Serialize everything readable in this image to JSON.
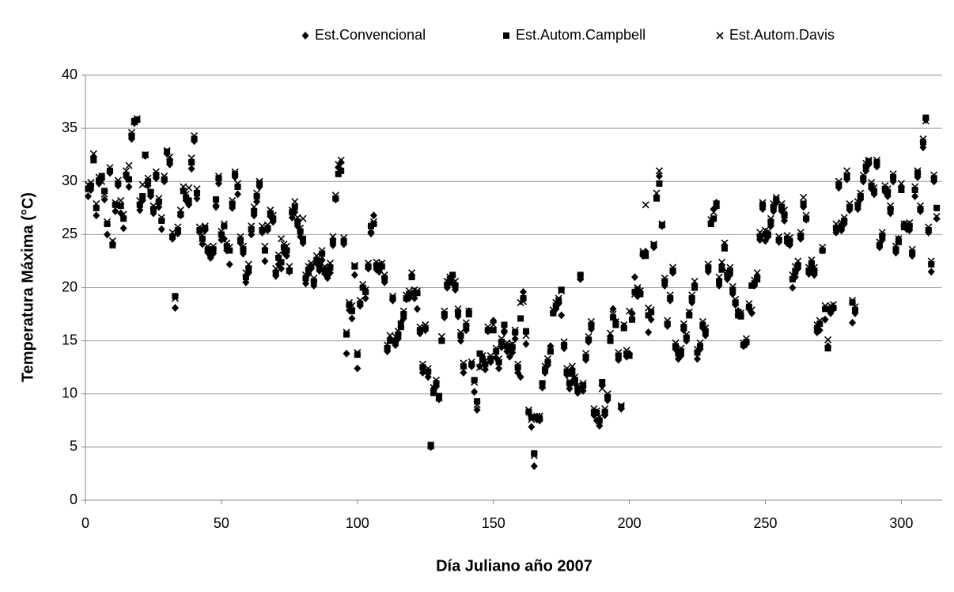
{
  "chart_data": {
    "type": "scatter",
    "xlabel": "Día Juliano año 2007",
    "ylabel": "Temperatura Máxima (°C)",
    "xlim": [
      0,
      315
    ],
    "ylim": [
      0,
      40
    ],
    "xticks": [
      0,
      50,
      100,
      150,
      200,
      250,
      300
    ],
    "yticks": [
      0,
      5,
      10,
      15,
      20,
      25,
      30,
      35,
      40
    ],
    "grid": true,
    "legend": "top",
    "x": [
      1,
      2,
      3,
      4,
      5,
      6,
      7,
      8,
      9,
      10,
      11,
      12,
      13,
      14,
      15,
      16,
      17,
      18,
      19,
      20,
      21,
      22,
      23,
      24,
      25,
      26,
      27,
      28,
      29,
      30,
      31,
      32,
      33,
      34,
      35,
      36,
      37,
      38,
      39,
      40,
      41,
      42,
      43,
      44,
      45,
      46,
      47,
      48,
      49,
      50,
      51,
      52,
      53,
      54,
      55,
      56,
      57,
      58,
      59,
      60,
      61,
      62,
      63,
      64,
      65,
      66,
      67,
      68,
      69,
      70,
      71,
      72,
      73,
      74,
      75,
      76,
      77,
      78,
      79,
      80,
      81,
      82,
      83,
      84,
      85,
      86,
      87,
      88,
      89,
      90,
      91,
      92,
      93,
      94,
      95,
      96,
      97,
      98,
      99,
      100,
      101,
      102,
      103,
      104,
      105,
      106,
      107,
      108,
      109,
      110,
      111,
      112,
      113,
      114,
      115,
      116,
      117,
      118,
      119,
      120,
      121,
      122,
      123,
      124,
      125,
      126,
      127,
      128,
      129,
      130,
      131,
      132,
      133,
      134,
      135,
      136,
      137,
      138,
      139,
      140,
      141,
      142,
      143,
      144,
      145,
      146,
      147,
      148,
      149,
      150,
      151,
      152,
      153,
      154,
      155,
      156,
      157,
      158,
      159,
      160,
      161,
      162,
      163,
      164,
      165,
      166,
      167,
      168,
      169,
      170,
      171,
      172,
      173,
      174,
      175,
      176,
      177,
      178,
      179,
      180,
      181,
      182,
      183,
      184,
      185,
      186,
      187,
      188,
      189,
      190,
      191,
      192,
      193,
      194,
      195,
      196,
      197,
      198,
      199,
      200,
      201,
      202,
      203,
      204,
      205,
      206,
      207,
      208,
      209,
      210,
      211,
      212,
      213,
      214,
      215,
      216,
      217,
      218,
      219,
      220,
      221,
      222,
      223,
      224,
      225,
      226,
      227,
      228,
      229,
      230,
      231,
      232,
      233,
      234,
      235,
      236,
      237,
      238,
      239,
      240,
      241,
      242,
      243,
      244,
      245,
      246,
      247,
      248,
      249,
      250,
      251,
      252,
      253,
      254,
      255,
      256,
      257,
      258,
      259,
      260,
      261,
      262,
      263,
      264,
      265,
      266,
      267,
      268,
      269,
      270,
      271,
      272,
      273,
      274,
      275,
      276,
      277,
      278,
      279,
      280,
      281,
      282,
      283,
      284,
      285,
      286,
      287,
      288,
      289,
      290,
      291,
      292,
      293,
      294,
      295,
      296,
      297,
      298,
      299,
      300,
      301,
      302,
      303,
      304,
      305,
      306,
      307,
      308,
      309,
      310,
      311,
      312,
      313
    ],
    "series": [
      {
        "name": "Est.Convencional",
        "color": "#000000",
        "marker": "diamond",
        "values": [
          28.6,
          29.2,
          32.3,
          26.8,
          29.8,
          30.2,
          28.3,
          25.0,
          30.8,
          24.2,
          27.2,
          29.6,
          27.0,
          25.6,
          30.4,
          29.5,
          34.0,
          35.5,
          35.8,
          27.3,
          28.2,
          32.4,
          29.6,
          28.6,
          27.0,
          30.3,
          27.6,
          25.5,
          30.0,
          32.6,
          31.6,
          24.6,
          18.1,
          25.1,
          26.8,
          29.2,
          28.2,
          27.8,
          31.2,
          33.8,
          28.4,
          25.2,
          24.1,
          25.4,
          23.3,
          22.8,
          23.2,
          27.6,
          29.8,
          24.5,
          24.6,
          23.5,
          22.2,
          27.5,
          30.4,
          28.8,
          24.2,
          23.2,
          20.5,
          21.4,
          25.0,
          26.8,
          28.1,
          29.5,
          25.2,
          22.5,
          25.4,
          26.7,
          26.2,
          21.1,
          22.2,
          21.8,
          23.3,
          23.0,
          21.5,
          26.6,
          27.1,
          25.8,
          24.8,
          24.2,
          20.4,
          21.3,
          21.8,
          20.2,
          22.3,
          21.6,
          22.6,
          21.3,
          20.9,
          21.4,
          24.0,
          28.3,
          31.3,
          31.8,
          24.1,
          13.8,
          17.9,
          17.1,
          21.2,
          12.4,
          18.3,
          20.0,
          19.0,
          21.8,
          25.1,
          26.8,
          21.7,
          21.5,
          22.0,
          20.5,
          14.0,
          15.2,
          18.8,
          14.6,
          15.2,
          16.7,
          17.1,
          18.9,
          19.0,
          21.2,
          19.0,
          18.0,
          15.7,
          12.0,
          16.0,
          11.6,
          5.0,
          10.5,
          10.7,
          9.5,
          15.1,
          17.2,
          20.0,
          20.5,
          20.4,
          19.8,
          17.3,
          15.0,
          12.0,
          16.0,
          17.8,
          12.6,
          10.2,
          8.5,
          12.6,
          13.5,
          12.3,
          15.9,
          13.0,
          16.9,
          13.4,
          12.4,
          14.4,
          15.8,
          14.0,
          13.5,
          13.9,
          15.2,
          12.0,
          11.6,
          19.6,
          14.7,
          8.2,
          6.9,
          3.2,
          7.6,
          7.5,
          10.6,
          12.0,
          12.7,
          14.5,
          17.7,
          18.0,
          18.5,
          17.4,
          14.3,
          11.8,
          10.5,
          12.3,
          11.0,
          10.1,
          20.8,
          10.3,
          13.2,
          14.9,
          16.1,
          8.0,
          7.5,
          7.0,
          10.8,
          8.0,
          9.4,
          15.4,
          18.0,
          16.8,
          13.2,
          8.6,
          16.4,
          13.5,
          13.8,
          17.6,
          21.0,
          19.2,
          19.6,
          23.0,
          23.4,
          15.8,
          17.0,
          23.8,
          28.6,
          30.5,
          25.8,
          20.2,
          16.4,
          18.8,
          21.4,
          14.2,
          13.3,
          13.6,
          16.0,
          15.0,
          17.6,
          18.6,
          20.2,
          13.3,
          14.2,
          16.2,
          15.5,
          21.5,
          26.2,
          27.4,
          28.0,
          20.2,
          22.1,
          24.0,
          20.8,
          21.2,
          19.4,
          18.4,
          17.8,
          17.6,
          14.5,
          14.7,
          18.0,
          17.6,
          20.2,
          21.0,
          24.5,
          27.4,
          24.4,
          24.8,
          25.8,
          27.2,
          28.0,
          24.3,
          27.2,
          26.3,
          24.2,
          24.0,
          20.0,
          21.0,
          21.8,
          24.6,
          27.6,
          26.4,
          21.3,
          21.9,
          21.2,
          15.8,
          16.0,
          23.5,
          17.0,
          14.5,
          17.6,
          18.0,
          25.2,
          29.4,
          25.4,
          26.0,
          30.2,
          27.3,
          16.7,
          17.6,
          27.4,
          28.3,
          30.0,
          31.0,
          31.6,
          29.3,
          28.8,
          31.4,
          23.8,
          24.5,
          29.0,
          28.6,
          27.0,
          30.0,
          23.3,
          24.6,
          29.5,
          26.0,
          25.5,
          25.4,
          23.0,
          28.6,
          30.4,
          27.2,
          33.2,
          35.8,
          25.2,
          21.5,
          30.0,
          26.5
        ]
      },
      {
        "name": "Est.Autom.Campbell",
        "color": "#000000",
        "marker": "square",
        "values": [
          29.3,
          29.6,
          32.0,
          27.5,
          30.1,
          30.5,
          29.1,
          26.0,
          31.0,
          24.0,
          27.8,
          29.8,
          27.7,
          26.5,
          30.6,
          30.2,
          34.3,
          35.7,
          35.8,
          27.8,
          28.6,
          32.5,
          30.0,
          29.0,
          27.4,
          30.6,
          28.1,
          26.3,
          30.2,
          32.8,
          31.9,
          24.8,
          19.2,
          25.4,
          26.9,
          29.1,
          28.5,
          28.2,
          31.8,
          34.0,
          28.9,
          25.4,
          24.6,
          25.6,
          23.6,
          23.2,
          23.6,
          28.3,
          30.3,
          25.0,
          25.8,
          23.9,
          23.5,
          27.9,
          30.7,
          29.5,
          24.5,
          23.6,
          21.0,
          21.8,
          25.5,
          27.2,
          28.6,
          29.8,
          25.4,
          23.5,
          25.6,
          27.0,
          26.5,
          21.4,
          22.8,
          22.4,
          23.8,
          23.5,
          21.6,
          27.1,
          27.6,
          26.2,
          25.3,
          24.6,
          20.9,
          21.7,
          22.0,
          20.6,
          22.6,
          22.0,
          23.2,
          21.7,
          21.3,
          21.9,
          24.4,
          28.4,
          30.7,
          31.0,
          24.4,
          15.6,
          18.4,
          17.8,
          22.0,
          13.7,
          18.5,
          20.0,
          19.6,
          22.0,
          25.8,
          26.0,
          22.1,
          21.8,
          22.0,
          20.9,
          14.3,
          15.0,
          19.0,
          15.0,
          15.6,
          16.3,
          17.5,
          19.0,
          19.4,
          21.0,
          19.5,
          19.5,
          16.0,
          12.5,
          16.2,
          12.1,
          5.2,
          10.1,
          11.0,
          9.8,
          15.0,
          17.5,
          20.3,
          20.8,
          21.2,
          20.2,
          17.7,
          15.5,
          12.6,
          16.4,
          17.5,
          12.8,
          11.3,
          9.3,
          13.8,
          13.2,
          12.8,
          16.0,
          13.3,
          16.0,
          14.0,
          13.0,
          14.9,
          16.5,
          14.5,
          14.3,
          14.4,
          15.8,
          12.5,
          17.1,
          19.0,
          15.9,
          8.3,
          7.8,
          4.4,
          7.8,
          7.7,
          11.0,
          12.3,
          13.0,
          14.0,
          17.6,
          18.3,
          18.8,
          19.8,
          14.6,
          12.1,
          11.0,
          11.9,
          11.3,
          10.5,
          21.2,
          10.8,
          13.5,
          15.1,
          16.5,
          8.3,
          8.2,
          7.5,
          11.1,
          8.3,
          9.7,
          15.0,
          17.2,
          16.5,
          13.6,
          8.8,
          16.2,
          13.8,
          13.6,
          17.0,
          19.6,
          19.8,
          19.4,
          23.2,
          23.0,
          17.4,
          17.7,
          24.0,
          28.4,
          29.8,
          25.9,
          20.6,
          16.6,
          19.0,
          21.6,
          14.5,
          13.8,
          14.0,
          16.3,
          15.3,
          17.4,
          19.0,
          20.0,
          13.9,
          14.5,
          16.5,
          15.9,
          21.9,
          26.0,
          26.5,
          27.7,
          20.6,
          21.7,
          23.7,
          21.2,
          21.6,
          19.8,
          18.6,
          17.4,
          17.3,
          14.6,
          14.9,
          18.2,
          20.2,
          20.4,
          20.8,
          24.8,
          27.8,
          25.0,
          25.0,
          26.2,
          27.6,
          28.3,
          24.5,
          27.6,
          26.8,
          24.6,
          24.4,
          20.8,
          21.5,
          22.1,
          24.9,
          27.9,
          26.5,
          21.6,
          22.3,
          21.6,
          16.2,
          16.6,
          23.5,
          18.0,
          14.3,
          18.0,
          18.1,
          25.6,
          29.7,
          25.8,
          26.3,
          30.5,
          27.6,
          18.6,
          17.9,
          27.8,
          28.6,
          30.3,
          31.4,
          31.9,
          29.6,
          29.1,
          31.8,
          24.0,
          24.9,
          29.3,
          29.0,
          27.4,
          30.4,
          23.6,
          24.3,
          29.2,
          25.7,
          25.7,
          25.8,
          23.3,
          29.2,
          30.8,
          27.4,
          33.7,
          36.0,
          25.4,
          22.2,
          30.3,
          27.5
        ]
      },
      {
        "name": "Est.Autom.Davis",
        "color": "#000000",
        "marker": "x",
        "values": [
          29.7,
          29.9,
          32.6,
          27.9,
          30.4,
          30.0,
          28.8,
          26.2,
          31.3,
          24.4,
          28.0,
          30.1,
          28.2,
          26.9,
          31.0,
          31.5,
          34.6,
          35.6,
          35.9,
          28.2,
          29.7,
          32.5,
          30.3,
          28.9,
          27.7,
          30.9,
          28.4,
          26.6,
          30.5,
          32.9,
          32.3,
          25.2,
          19.0,
          25.7,
          27.3,
          29.5,
          28.8,
          29.4,
          32.2,
          34.3,
          29.3,
          25.7,
          24.9,
          25.8,
          23.9,
          23.5,
          23.9,
          28.0,
          30.5,
          25.3,
          26.0,
          24.2,
          23.8,
          28.2,
          30.9,
          29.8,
          24.8,
          23.9,
          21.4,
          22.2,
          25.8,
          27.6,
          28.9,
          30.0,
          25.8,
          23.9,
          25.9,
          27.3,
          26.8,
          21.8,
          23.1,
          24.6,
          24.1,
          23.9,
          22.0,
          27.3,
          28.1,
          26.6,
          25.6,
          26.5,
          21.2,
          22.0,
          22.3,
          20.9,
          23.0,
          22.4,
          23.5,
          22.0,
          21.6,
          22.3,
          24.8,
          28.7,
          31.6,
          32.0,
          24.7,
          15.8,
          18.6,
          18.3,
          22.1,
          13.9,
          18.8,
          20.3,
          19.8,
          22.3,
          25.5,
          26.2,
          22.4,
          22.2,
          22.3,
          21.2,
          14.6,
          15.5,
          19.2,
          15.4,
          15.9,
          16.6,
          17.8,
          19.3,
          19.7,
          21.4,
          19.8,
          19.7,
          16.3,
          12.8,
          16.5,
          12.4,
          5.1,
          10.6,
          11.3,
          9.6,
          15.4,
          17.8,
          20.6,
          21.0,
          20.9,
          20.6,
          18.0,
          15.8,
          12.9,
          16.7,
          17.8,
          13.0,
          11.1,
          9.0,
          12.5,
          13.6,
          13.1,
          16.3,
          13.6,
          16.5,
          14.3,
          13.3,
          15.2,
          16.2,
          14.8,
          14.6,
          14.7,
          16.0,
          12.8,
          18.6,
          18.7,
          15.5,
          8.5,
          7.6,
          4.2,
          7.9,
          7.9,
          10.8,
          12.6,
          13.3,
          14.2,
          17.9,
          18.6,
          19.0,
          19.7,
          14.9,
          12.4,
          11.2,
          12.6,
          11.6,
          10.8,
          21.0,
          11.0,
          13.8,
          15.4,
          16.8,
          8.6,
          8.4,
          7.8,
          10.5,
          8.6,
          10.0,
          15.7,
          17.5,
          16.8,
          13.9,
          8.9,
          16.5,
          14.1,
          17.8,
          17.3,
          19.4,
          20.0,
          19.7,
          23.4,
          27.8,
          18.1,
          17.9,
          24.1,
          28.9,
          31.0,
          26.0,
          20.9,
          16.9,
          19.3,
          21.9,
          14.8,
          14.1,
          14.3,
          16.6,
          15.6,
          17.7,
          19.3,
          20.6,
          14.2,
          14.8,
          16.8,
          16.2,
          22.2,
          26.4,
          27.1,
          27.9,
          21.0,
          22.4,
          24.2,
          21.5,
          21.9,
          20.1,
          18.9,
          17.7,
          17.6,
          14.8,
          15.2,
          18.5,
          17.9,
          20.7,
          21.4,
          25.2,
          28.0,
          25.4,
          25.3,
          26.5,
          27.9,
          28.5,
          24.8,
          27.9,
          27.3,
          24.9,
          24.7,
          21.2,
          22.0,
          22.5,
          25.2,
          28.5,
          26.8,
          21.9,
          22.6,
          21.9,
          16.5,
          16.9,
          23.8,
          18.3,
          15.1,
          18.3,
          18.4,
          26.0,
          30.0,
          26.1,
          26.6,
          31.0,
          27.9,
          18.8,
          18.2,
          28.1,
          28.9,
          30.6,
          31.7,
          32.0,
          29.9,
          29.4,
          32.0,
          24.3,
          25.2,
          29.6,
          29.3,
          27.7,
          30.7,
          23.9,
          24.6,
          29.8,
          26.0,
          26.0,
          26.1,
          23.6,
          29.5,
          31.0,
          27.7,
          34.0,
          35.7,
          25.7,
          22.5,
          30.6,
          26.7
        ]
      }
    ]
  }
}
